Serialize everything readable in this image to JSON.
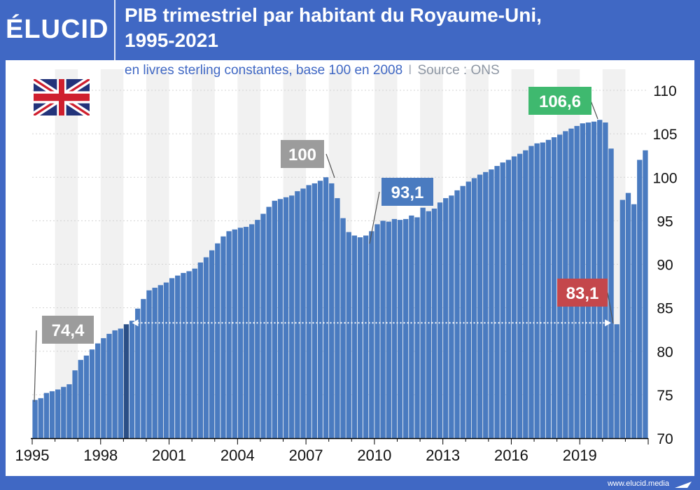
{
  "brand": {
    "logo_text": "ÉLUCID",
    "url": "www.elucid.media"
  },
  "header": {
    "title_line1": "PIB trimestriel par habitant du Royaume-Uni,",
    "title_line2": "1995-2021"
  },
  "subtitle": {
    "main": "en livres sterling constantes, base 100 en 2008",
    "separator": "I",
    "source": "Source : ONS"
  },
  "flag": {
    "icon": "uk-flag-icon"
  },
  "colors": {
    "bar": "#4a7bc0",
    "highlight_bar": "#2b4f86",
    "frame": "#4068c4",
    "green": "#3fb96f",
    "red": "#c4474b",
    "gray": "#9c9c9c",
    "blue_label": "#4a7bc0"
  },
  "chart_data": {
    "type": "bar",
    "title": "PIB trimestriel par habitant du Royaume-Uni, 1995-2021",
    "subtitle": "en livres sterling constantes, base 100 en 2008",
    "ylim": [
      70,
      110
    ],
    "y_ticks": [
      "70",
      "75",
      "80",
      "85",
      "90",
      "95",
      "100",
      "105",
      "110"
    ],
    "x_ticks": [
      "1995",
      "1998",
      "2001",
      "2004",
      "2007",
      "2010",
      "2013",
      "2016",
      "2019"
    ],
    "grid": true,
    "start_year": 1995,
    "values": [
      74.4,
      74.6,
      75.2,
      75.4,
      75.6,
      75.9,
      76.2,
      77.8,
      79.0,
      79.5,
      80.2,
      80.9,
      81.5,
      82.0,
      82.4,
      82.6,
      83.1,
      83.5,
      84.9,
      86.0,
      87.0,
      87.3,
      87.6,
      87.9,
      88.4,
      88.7,
      89.0,
      89.2,
      89.5,
      90.2,
      90.8,
      91.6,
      92.4,
      93.2,
      93.8,
      94.0,
      94.2,
      94.3,
      94.6,
      95.1,
      95.8,
      96.6,
      97.3,
      97.5,
      97.7,
      97.9,
      98.4,
      98.7,
      99.1,
      99.3,
      99.6,
      100.0,
      99.3,
      97.6,
      95.3,
      93.7,
      93.3,
      93.1,
      93.3,
      93.8,
      94.6,
      95.0,
      94.9,
      95.2,
      95.1,
      95.2,
      95.6,
      95.4,
      96.5,
      96.1,
      96.4,
      97.1,
      97.6,
      97.9,
      98.5,
      99.0,
      99.5,
      99.9,
      100.3,
      100.6,
      100.9,
      101.3,
      101.7,
      102.0,
      102.4,
      102.7,
      103.1,
      103.6,
      103.9,
      104.0,
      104.3,
      104.6,
      104.9,
      105.3,
      105.6,
      105.9,
      106.2,
      106.3,
      106.4,
      106.6,
      106.3,
      103.3,
      83.1,
      97.4,
      98.2,
      96.9,
      102.0,
      103.1
    ],
    "highlight_index": 16,
    "annotations": [
      {
        "text": "74,4",
        "index": 0,
        "value": 74.4,
        "color": "gray"
      },
      {
        "text": "100",
        "index": 51,
        "value": 100.0,
        "color": "gray"
      },
      {
        "text": "93,1",
        "index": 57,
        "value": 93.1,
        "color": "blue_label"
      },
      {
        "text": "106,6",
        "index": 99,
        "value": 106.6,
        "color": "green"
      },
      {
        "text": "83,1",
        "index": 102,
        "value": 83.1,
        "color": "red"
      }
    ],
    "arrow": {
      "from_index": 16,
      "to_index": 102,
      "value": 83.1
    }
  }
}
